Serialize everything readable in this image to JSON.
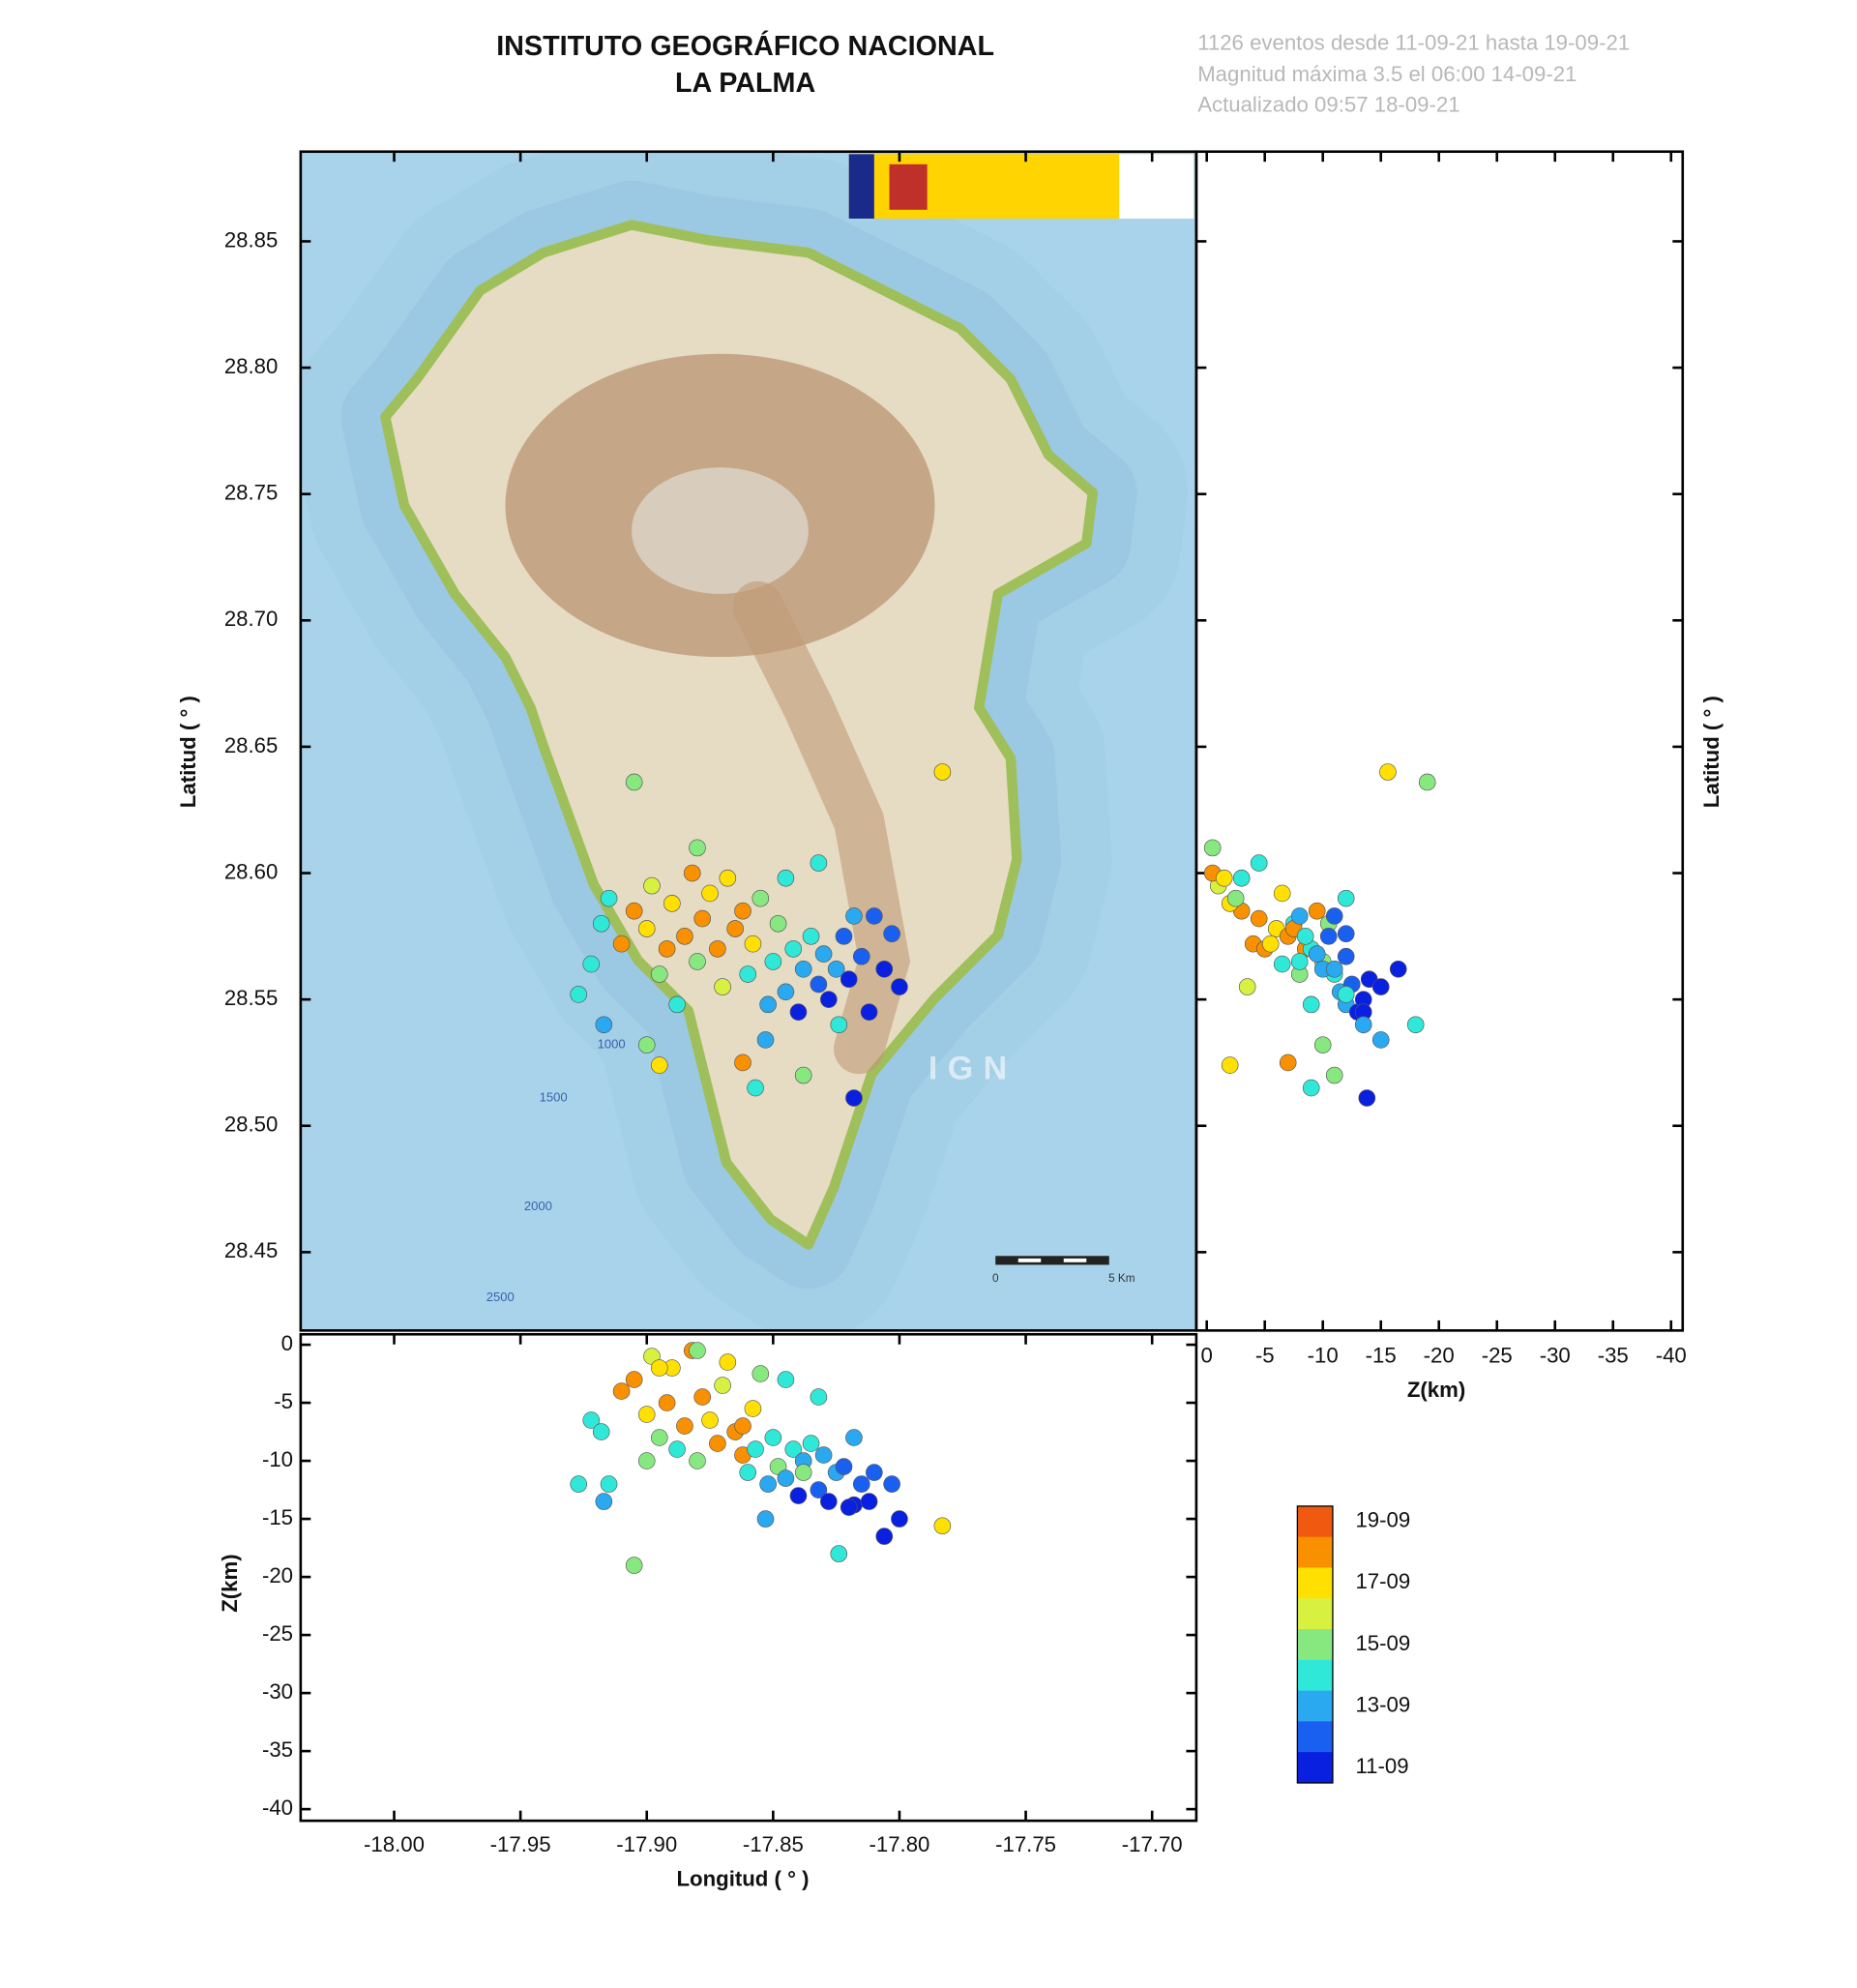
{
  "chart_data": {
    "type": "scatter",
    "title": "INSTITUTO GEOGRÁFICO NACIONAL",
    "subtitle": "LA PALMA",
    "info": [
      "1126 eventos desde 11-09-21 hasta 19-09-21",
      "Magnitud máxima 3.5 el 06:00 14-09-21",
      "Actualizado   09:57  18-09-21"
    ],
    "xlabel": "Longitud ( ° )",
    "ylabel": "Latitud ( ° )",
    "zlabel": "Z(km)",
    "xlim": [
      -18.037,
      -17.6825
    ],
    "ylim": [
      28.419,
      28.8855
    ],
    "zlim": [
      0.9,
      -41
    ],
    "xticks": [
      {
        "value": -18.0,
        "label": "-18.00"
      },
      {
        "value": -17.95,
        "label": "-17.95"
      },
      {
        "value": -17.9,
        "label": "-17.90"
      },
      {
        "value": -17.85,
        "label": "-17.85"
      },
      {
        "value": -17.8,
        "label": "-17.80"
      },
      {
        "value": -17.75,
        "label": "-17.75"
      },
      {
        "value": -17.7,
        "label": "-17.70"
      }
    ],
    "yticks": [
      {
        "value": 28.45,
        "label": "28.45"
      },
      {
        "value": 28.5,
        "label": "28.50"
      },
      {
        "value": 28.55,
        "label": "28.55"
      },
      {
        "value": 28.6,
        "label": "28.60"
      },
      {
        "value": 28.65,
        "label": "28.65"
      },
      {
        "value": 28.7,
        "label": "28.70"
      },
      {
        "value": 28.75,
        "label": "28.75"
      },
      {
        "value": 28.8,
        "label": "28.80"
      },
      {
        "value": 28.85,
        "label": "28.85"
      }
    ],
    "zticks": [
      0,
      -5,
      -10,
      -15,
      -20,
      -25,
      -30,
      -35,
      -40
    ],
    "x": [
      -17.905,
      -17.783,
      -17.818,
      -17.922,
      -17.918,
      -17.915,
      -17.91,
      -17.905,
      -17.9,
      -17.898,
      -17.895,
      -17.892,
      -17.89,
      -17.888,
      -17.885,
      -17.882,
      -17.88,
      -17.878,
      -17.875,
      -17.872,
      -17.87,
      -17.868,
      -17.865,
      -17.862,
      -17.86,
      -17.858,
      -17.855,
      -17.852,
      -17.85,
      -17.848,
      -17.845,
      -17.842,
      -17.84,
      -17.838,
      -17.835,
      -17.832,
      -17.83,
      -17.828,
      -17.825,
      -17.822,
      -17.82,
      -17.815,
      -17.812,
      -17.81,
      -17.806,
      -17.803,
      -17.8,
      -17.824,
      -17.853,
      -17.862,
      -17.857,
      -17.838,
      -17.895,
      -17.927,
      -17.917,
      -17.9,
      -17.88,
      -17.845,
      -17.832,
      -17.818
    ],
    "y": [
      28.636,
      28.64,
      28.511,
      28.564,
      28.58,
      28.59,
      28.572,
      28.585,
      28.578,
      28.595,
      28.56,
      28.57,
      28.588,
      28.548,
      28.575,
      28.6,
      28.565,
      28.582,
      28.592,
      28.57,
      28.555,
      28.598,
      28.578,
      28.585,
      28.56,
      28.572,
      28.59,
      28.548,
      28.565,
      28.58,
      28.553,
      28.57,
      28.545,
      28.562,
      28.575,
      28.556,
      28.568,
      28.55,
      28.562,
      28.575,
      28.558,
      28.567,
      28.545,
      28.583,
      28.562,
      28.576,
      28.555,
      28.54,
      28.534,
      28.525,
      28.515,
      28.52,
      28.524,
      28.552,
      28.54,
      28.532,
      28.61,
      28.598,
      28.604,
      28.583
    ],
    "z": [
      -19,
      -15.6,
      -13.8,
      -6.5,
      -7.5,
      -12,
      -4,
      -3,
      -6,
      -1,
      -8,
      -5,
      -2,
      -9,
      -7,
      -0.5,
      -10,
      -4.5,
      -6.5,
      -8.5,
      -3.5,
      -1.5,
      -7.5,
      -9.5,
      -11,
      -5.5,
      -2.5,
      -12,
      -8,
      -10.5,
      -11.5,
      -9,
      -13,
      -10,
      -8.5,
      -12.5,
      -9.5,
      -13.5,
      -11,
      -10.5,
      -14,
      -12,
      -13.5,
      -11,
      -16.5,
      -12,
      -15,
      -18,
      -15,
      -7,
      -9,
      -11,
      -2,
      -12,
      -13.5,
      -10,
      -0.5,
      -3,
      -4.5,
      -8
    ],
    "colors": [
      "#88e880",
      "#ffe000",
      "#0a20e0",
      "#30e8d8",
      "#30e8d8",
      "#30e8d8",
      "#f89000",
      "#f89000",
      "#ffe000",
      "#d8f040",
      "#88e880",
      "#f89000",
      "#ffe000",
      "#30e8d8",
      "#f89000",
      "#f89000",
      "#88e880",
      "#f89000",
      "#ffe000",
      "#f89000",
      "#d8f040",
      "#ffe000",
      "#f89000",
      "#f89000",
      "#30e8d8",
      "#ffe000",
      "#88e880",
      "#2aa8f0",
      "#30e8d8",
      "#88e880",
      "#2aa8f0",
      "#30e8d8",
      "#0a20e0",
      "#2aa8f0",
      "#30e8d8",
      "#1a60f0",
      "#2aa8f0",
      "#0a20e0",
      "#2aa8f0",
      "#1a60f0",
      "#0a20e0",
      "#1a60f0",
      "#0a20e0",
      "#1a60f0",
      "#0a20e0",
      "#1a60f0",
      "#0a20e0",
      "#30e8d8",
      "#2aa8f0",
      "#f89000",
      "#30e8d8",
      "#88e880",
      "#ffe000",
      "#30e8d8",
      "#2aa8f0",
      "#88e880",
      "#88e880",
      "#30e8d8",
      "#30e8d8",
      "#2aa8f0"
    ],
    "colorbar": {
      "colors": [
        "#f05a10",
        "#f89000",
        "#ffe000",
        "#d8f040",
        "#88e880",
        "#30e8d8",
        "#2aa8f0",
        "#1a60f0",
        "#0a20e0"
      ],
      "labels": [
        "19-09",
        "17-09",
        "15-09",
        "13-09",
        "11-09"
      ]
    }
  },
  "map_labels": {
    "contours": [
      "1000",
      "1500",
      "2000",
      "2500"
    ],
    "watermark": "IGN",
    "scale": [
      "0",
      "5 Km"
    ]
  }
}
